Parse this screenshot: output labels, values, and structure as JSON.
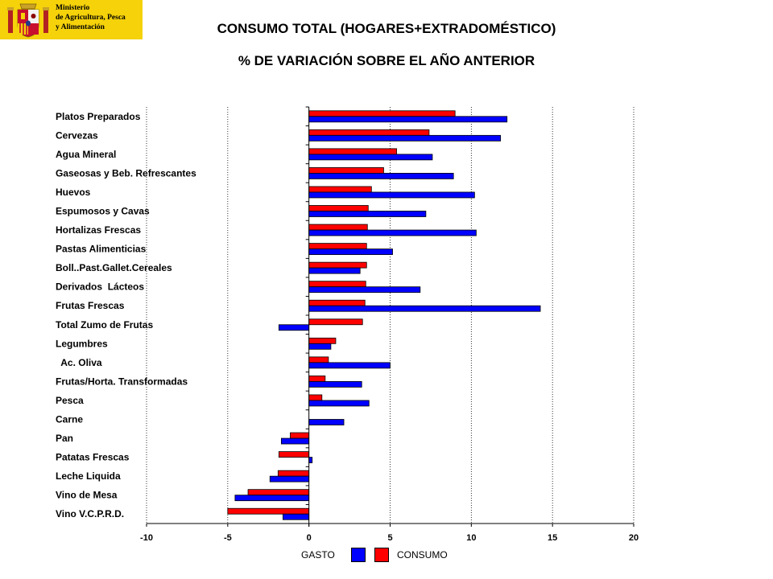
{
  "header": {
    "ministry_lines": [
      "Ministerio",
      "de Agricultura, Pesca",
      "y Alimentación"
    ],
    "crest_icon": "spanish-coat-of-arms-icon"
  },
  "chart_data": {
    "type": "bar",
    "orientation": "horizontal",
    "title": "CONSUMO TOTAL (HOGARES+EXTRADOMÉSTICO)",
    "subtitle": "% DE VARIACIÓN SOBRE EL AÑO ANTERIOR",
    "xlim": [
      -10,
      20
    ],
    "x_ticks": [
      -10,
      -5,
      0,
      5,
      10,
      15,
      20
    ],
    "grid": "vertical dotted",
    "legend_position": "bottom-center",
    "categories": [
      "Platos Preparados",
      "Cervezas",
      "Agua Mineral",
      "Gaseosas y Beb. Refrescantes",
      "Huevos",
      "Espumosos y Cavas",
      "Hortalizas Frescas",
      "Pastas Alimenticias",
      "Boll..Past.Gallet.Cereales",
      "Derivados  Lácteos",
      "Frutas Frescas",
      "Total Zumo de Frutas",
      "Legumbres",
      "  Ac. Oliva",
      "Frutas/Horta. Transformadas",
      "Pesca",
      "Carne",
      "Pan",
      "Patatas Frescas",
      "Leche Liquida",
      "Vino de Mesa",
      "Vino V.C.P.R.D."
    ],
    "series": [
      {
        "name": "CONSUMO",
        "color": "#ff0000",
        "values": [
          9.0,
          7.4,
          5.4,
          4.6,
          3.85,
          3.65,
          3.6,
          3.55,
          3.55,
          3.5,
          3.45,
          3.3,
          1.65,
          1.2,
          1.0,
          0.8,
          0.0,
          -1.15,
          -1.85,
          -1.9,
          -3.75,
          -5.0
        ]
      },
      {
        "name": "GASTO",
        "color": "#0000ff",
        "values": [
          12.2,
          11.8,
          7.6,
          8.9,
          10.2,
          7.2,
          10.3,
          5.15,
          3.15,
          6.85,
          14.25,
          -1.85,
          1.35,
          5.0,
          3.25,
          3.7,
          2.15,
          -1.7,
          0.2,
          -2.4,
          -4.55,
          -1.6
        ]
      }
    ]
  },
  "legend": {
    "gasto_label": "GASTO",
    "consumo_label": "CONSUMO"
  }
}
